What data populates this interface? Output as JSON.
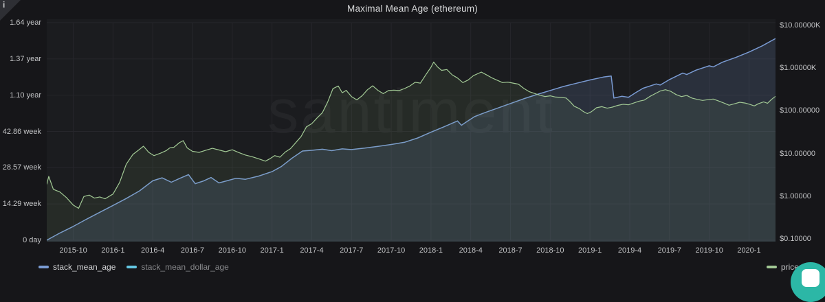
{
  "watermark": "santiment",
  "icons": {
    "info_glyph": "i",
    "chat_widget": "intercom-chat-launcher"
  },
  "colors": {
    "background": "#161619",
    "plot_background": "#1b1c1f",
    "grid": "#26262b",
    "stack_mean_age": "#7a9bd3",
    "stack_mean_age_fill": "rgba(122,155,211,0.16)",
    "stack_mean_dollar_age": "#64c7e3",
    "price_usd": "#a2c995",
    "price_usd_fill": "rgba(140,180,115,0.10)",
    "chat_teal": "#2cb7a6"
  },
  "legend": {
    "items": [
      {
        "label": "stack_mean_age",
        "marker_color": "#7a9bd3",
        "text_color": "#d3d4d6",
        "active": true
      },
      {
        "label": "stack_mean_dollar_age",
        "marker_color": "#64c7e3",
        "text_color": "#87888b",
        "active": false
      },
      {
        "label": "price_usd",
        "marker_color": "#a2c995",
        "text_color": "#c0c1c3",
        "active": true
      }
    ]
  },
  "chart_data": {
    "type": "line",
    "title": "Maximal Mean Age (ethereum)",
    "x_axis": {
      "start_month": "2015-08",
      "months_span": 55,
      "ticks": [
        {
          "t": 2,
          "label": "2015-10"
        },
        {
          "t": 5,
          "label": "2016-1"
        },
        {
          "t": 8,
          "label": "2016-4"
        },
        {
          "t": 11,
          "label": "2016-7"
        },
        {
          "t": 14,
          "label": "2016-10"
        },
        {
          "t": 17,
          "label": "2017-1"
        },
        {
          "t": 20,
          "label": "2017-4"
        },
        {
          "t": 23,
          "label": "2017-7"
        },
        {
          "t": 26,
          "label": "2017-10"
        },
        {
          "t": 29,
          "label": "2018-1"
        },
        {
          "t": 32,
          "label": "2018-4"
        },
        {
          "t": 35,
          "label": "2018-7"
        },
        {
          "t": 38,
          "label": "2018-10"
        },
        {
          "t": 41,
          "label": "2019-1"
        },
        {
          "t": 44,
          "label": "2019-4"
        },
        {
          "t": 47,
          "label": "2019-7"
        },
        {
          "t": 50,
          "label": "2019-10"
        },
        {
          "t": 53,
          "label": "2020-1"
        }
      ]
    },
    "y_axis_left": {
      "unit": "duration (days)",
      "scale": "linear",
      "min": 0,
      "max": 600,
      "ticks": [
        {
          "value": 0,
          "label": "0 day"
        },
        {
          "value": 100,
          "label": "14.29 week"
        },
        {
          "value": 200,
          "label": "28.57 week"
        },
        {
          "value": 300,
          "label": "42.86 week"
        },
        {
          "value": 400,
          "label": "1.10 year"
        },
        {
          "value": 500,
          "label": "1.37 year"
        },
        {
          "value": 600,
          "label": "1.64 year"
        }
      ]
    },
    "y_axis_right": {
      "unit": "USD",
      "scale": "log",
      "min": 0.1,
      "max": 10000,
      "ticks": [
        {
          "value": 0.1,
          "label": "$0.10000"
        },
        {
          "value": 1,
          "label": "$1.00000"
        },
        {
          "value": 10,
          "label": "$10.00000"
        },
        {
          "value": 100,
          "label": "$100.00000"
        },
        {
          "value": 1000,
          "label": "$1.00000K"
        },
        {
          "value": 10000,
          "label": "$10.00000K"
        }
      ]
    },
    "series": [
      {
        "name": "stack_mean_age",
        "axis": "left",
        "visible": true,
        "color": "#7a9bd3",
        "fill": "rgba(122,155,211,0.16)",
        "points": [
          [
            0,
            0
          ],
          [
            1,
            20
          ],
          [
            2,
            38
          ],
          [
            3,
            58
          ],
          [
            4,
            77
          ],
          [
            5,
            96
          ],
          [
            6,
            115
          ],
          [
            7,
            136
          ],
          [
            8,
            164
          ],
          [
            8.7,
            172
          ],
          [
            9.4,
            160
          ],
          [
            10,
            170
          ],
          [
            10.7,
            181
          ],
          [
            11.2,
            156
          ],
          [
            11.8,
            163
          ],
          [
            12.4,
            173
          ],
          [
            13,
            158
          ],
          [
            13.6,
            164
          ],
          [
            14.3,
            171
          ],
          [
            15,
            168
          ],
          [
            16,
            177
          ],
          [
            17,
            189
          ],
          [
            17.7,
            203
          ],
          [
            18.5,
            226
          ],
          [
            19.3,
            246
          ],
          [
            20,
            248
          ],
          [
            20.8,
            251
          ],
          [
            21.5,
            247
          ],
          [
            22.3,
            252
          ],
          [
            23,
            250
          ],
          [
            24,
            254
          ],
          [
            25,
            259
          ],
          [
            26,
            264
          ],
          [
            27,
            270
          ],
          [
            28,
            282
          ],
          [
            29,
            298
          ],
          [
            30,
            313
          ],
          [
            31,
            329
          ],
          [
            31.3,
            317
          ],
          [
            31.7,
            327
          ],
          [
            32.3,
            341
          ],
          [
            33,
            351
          ],
          [
            34,
            364
          ],
          [
            35,
            377
          ],
          [
            36,
            390
          ],
          [
            37,
            402
          ],
          [
            38,
            413
          ],
          [
            39,
            424
          ],
          [
            40,
            433
          ],
          [
            41,
            442
          ],
          [
            42,
            450
          ],
          [
            42.6,
            453
          ],
          [
            42.8,
            392
          ],
          [
            43.4,
            397
          ],
          [
            43.9,
            394
          ],
          [
            44.5,
            408
          ],
          [
            45,
            419
          ],
          [
            46,
            431
          ],
          [
            46.3,
            428
          ],
          [
            47,
            443
          ],
          [
            48,
            461
          ],
          [
            48.3,
            457
          ],
          [
            49,
            469
          ],
          [
            50,
            481
          ],
          [
            50.3,
            478
          ],
          [
            51,
            491
          ],
          [
            52,
            504
          ],
          [
            53,
            519
          ],
          [
            54,
            536
          ],
          [
            55,
            556
          ]
        ]
      },
      {
        "name": "stack_mean_dollar_age",
        "axis": "left",
        "visible": false,
        "color": "#64c7e3",
        "fill": "none",
        "points": []
      },
      {
        "name": "price_usd",
        "axis": "right",
        "visible": true,
        "color": "#a2c995",
        "fill": "rgba(140,180,115,0.10)",
        "points": [
          [
            0,
            1.9
          ],
          [
            0.15,
            2.9
          ],
          [
            0.5,
            1.45
          ],
          [
            1,
            1.25
          ],
          [
            1.5,
            0.92
          ],
          [
            2,
            0.62
          ],
          [
            2.4,
            0.52
          ],
          [
            2.8,
            0.98
          ],
          [
            3.2,
            1.06
          ],
          [
            3.6,
            0.9
          ],
          [
            4,
            0.96
          ],
          [
            4.4,
            0.87
          ],
          [
            5,
            1.12
          ],
          [
            5.5,
            2.1
          ],
          [
            6,
            5.6
          ],
          [
            6.5,
            9.5
          ],
          [
            7,
            12.5
          ],
          [
            7.3,
            14.8
          ],
          [
            7.7,
            10.6
          ],
          [
            8.1,
            8.9
          ],
          [
            8.6,
            10.2
          ],
          [
            9,
            11.6
          ],
          [
            9.3,
            13.6
          ],
          [
            9.6,
            14
          ],
          [
            10,
            17.8
          ],
          [
            10.3,
            20
          ],
          [
            10.6,
            13.5
          ],
          [
            11,
            11.2
          ],
          [
            11.5,
            10.6
          ],
          [
            12,
            11.9
          ],
          [
            12.5,
            13.2
          ],
          [
            13,
            12.1
          ],
          [
            13.5,
            11
          ],
          [
            14,
            12.2
          ],
          [
            14.5,
            10.5
          ],
          [
            15,
            9.2
          ],
          [
            15.5,
            8.4
          ],
          [
            16,
            7.5
          ],
          [
            16.5,
            6.6
          ],
          [
            16.8,
            7.4
          ],
          [
            17.2,
            8.9
          ],
          [
            17.6,
            8.2
          ],
          [
            18,
            10.8
          ],
          [
            18.4,
            13
          ],
          [
            18.8,
            18
          ],
          [
            19.2,
            25
          ],
          [
            19.6,
            42
          ],
          [
            20,
            50
          ],
          [
            20.4,
            68
          ],
          [
            20.8,
            90
          ],
          [
            21.2,
            160
          ],
          [
            21.6,
            330
          ],
          [
            22,
            380
          ],
          [
            22.3,
            265
          ],
          [
            22.6,
            300
          ],
          [
            23,
            215
          ],
          [
            23.4,
            180
          ],
          [
            23.8,
            225
          ],
          [
            24.2,
            310
          ],
          [
            24.6,
            385
          ],
          [
            25,
            300
          ],
          [
            25.4,
            252
          ],
          [
            25.8,
            298
          ],
          [
            26.2,
            305
          ],
          [
            26.6,
            298
          ],
          [
            27,
            332
          ],
          [
            27.4,
            380
          ],
          [
            27.8,
            465
          ],
          [
            28.2,
            445
          ],
          [
            28.6,
            690
          ],
          [
            29,
            1050
          ],
          [
            29.2,
            1385
          ],
          [
            29.5,
            1060
          ],
          [
            29.8,
            885
          ],
          [
            30.2,
            925
          ],
          [
            30.6,
            695
          ],
          [
            31,
            585
          ],
          [
            31.4,
            458
          ],
          [
            31.8,
            525
          ],
          [
            32.2,
            665
          ],
          [
            32.8,
            808
          ],
          [
            33.2,
            690
          ],
          [
            33.6,
            590
          ],
          [
            34,
            520
          ],
          [
            34.4,
            458
          ],
          [
            34.8,
            470
          ],
          [
            35.2,
            445
          ],
          [
            35.6,
            420
          ],
          [
            36,
            335
          ],
          [
            36.4,
            282
          ],
          [
            36.8,
            255
          ],
          [
            37.2,
            232
          ],
          [
            37.6,
            216
          ],
          [
            38,
            224
          ],
          [
            38.4,
            210
          ],
          [
            38.8,
            206
          ],
          [
            39.2,
            199
          ],
          [
            39.5,
            163
          ],
          [
            39.8,
            128
          ],
          [
            40.2,
            112
          ],
          [
            40.5,
            96
          ],
          [
            40.8,
            86
          ],
          [
            41.1,
            95
          ],
          [
            41.5,
            118
          ],
          [
            41.9,
            125
          ],
          [
            42.3,
            115
          ],
          [
            42.7,
            122
          ],
          [
            43.1,
            134
          ],
          [
            43.5,
            142
          ],
          [
            43.9,
            138
          ],
          [
            44.3,
            152
          ],
          [
            44.7,
            168
          ],
          [
            45.1,
            178
          ],
          [
            45.5,
            215
          ],
          [
            45.9,
            250
          ],
          [
            46.3,
            290
          ],
          [
            46.7,
            312
          ],
          [
            47.1,
            285
          ],
          [
            47.5,
            240
          ],
          [
            47.9,
            215
          ],
          [
            48.3,
            228
          ],
          [
            48.7,
            198
          ],
          [
            49.1,
            185
          ],
          [
            49.5,
            175
          ],
          [
            49.9,
            182
          ],
          [
            50.3,
            188
          ],
          [
            50.7,
            170
          ],
          [
            51.1,
            152
          ],
          [
            51.5,
            135
          ],
          [
            51.9,
            146
          ],
          [
            52.3,
            158
          ],
          [
            52.7,
            152
          ],
          [
            53.1,
            140
          ],
          [
            53.4,
            130
          ],
          [
            53.7,
            146
          ],
          [
            54.1,
            162
          ],
          [
            54.4,
            150
          ],
          [
            54.7,
            185
          ],
          [
            55,
            218
          ]
        ]
      }
    ],
    "layout": {
      "grid": true,
      "legend_position": "bottom",
      "watermark": "santiment"
    }
  }
}
